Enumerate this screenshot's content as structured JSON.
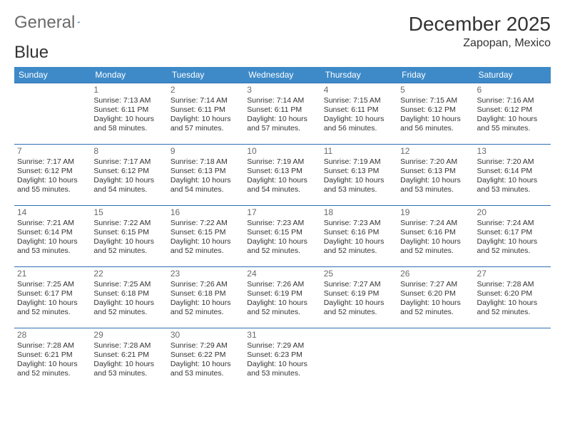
{
  "brand": {
    "part1": "General",
    "part2": "Blue"
  },
  "title": "December 2025",
  "location": "Zapopan, Mexico",
  "colors": {
    "header_bg": "#3e8ac8",
    "header_text": "#ffffff",
    "cell_border": "#2f6fb3",
    "daynum": "#6a6a6a",
    "text": "#333333",
    "logo_gray": "#6a6a6a",
    "logo_blue": "#2f6fb3"
  },
  "weekdays": [
    "Sunday",
    "Monday",
    "Tuesday",
    "Wednesday",
    "Thursday",
    "Friday",
    "Saturday"
  ],
  "first_day_index": 1,
  "days": [
    {
      "n": 1,
      "sr": "7:13 AM",
      "ss": "6:11 PM",
      "dl": "10 hours and 58 minutes."
    },
    {
      "n": 2,
      "sr": "7:14 AM",
      "ss": "6:11 PM",
      "dl": "10 hours and 57 minutes."
    },
    {
      "n": 3,
      "sr": "7:14 AM",
      "ss": "6:11 PM",
      "dl": "10 hours and 57 minutes."
    },
    {
      "n": 4,
      "sr": "7:15 AM",
      "ss": "6:11 PM",
      "dl": "10 hours and 56 minutes."
    },
    {
      "n": 5,
      "sr": "7:15 AM",
      "ss": "6:12 PM",
      "dl": "10 hours and 56 minutes."
    },
    {
      "n": 6,
      "sr": "7:16 AM",
      "ss": "6:12 PM",
      "dl": "10 hours and 55 minutes."
    },
    {
      "n": 7,
      "sr": "7:17 AM",
      "ss": "6:12 PM",
      "dl": "10 hours and 55 minutes."
    },
    {
      "n": 8,
      "sr": "7:17 AM",
      "ss": "6:12 PM",
      "dl": "10 hours and 54 minutes."
    },
    {
      "n": 9,
      "sr": "7:18 AM",
      "ss": "6:13 PM",
      "dl": "10 hours and 54 minutes."
    },
    {
      "n": 10,
      "sr": "7:19 AM",
      "ss": "6:13 PM",
      "dl": "10 hours and 54 minutes."
    },
    {
      "n": 11,
      "sr": "7:19 AM",
      "ss": "6:13 PM",
      "dl": "10 hours and 53 minutes."
    },
    {
      "n": 12,
      "sr": "7:20 AM",
      "ss": "6:13 PM",
      "dl": "10 hours and 53 minutes."
    },
    {
      "n": 13,
      "sr": "7:20 AM",
      "ss": "6:14 PM",
      "dl": "10 hours and 53 minutes."
    },
    {
      "n": 14,
      "sr": "7:21 AM",
      "ss": "6:14 PM",
      "dl": "10 hours and 53 minutes."
    },
    {
      "n": 15,
      "sr": "7:22 AM",
      "ss": "6:15 PM",
      "dl": "10 hours and 52 minutes."
    },
    {
      "n": 16,
      "sr": "7:22 AM",
      "ss": "6:15 PM",
      "dl": "10 hours and 52 minutes."
    },
    {
      "n": 17,
      "sr": "7:23 AM",
      "ss": "6:15 PM",
      "dl": "10 hours and 52 minutes."
    },
    {
      "n": 18,
      "sr": "7:23 AM",
      "ss": "6:16 PM",
      "dl": "10 hours and 52 minutes."
    },
    {
      "n": 19,
      "sr": "7:24 AM",
      "ss": "6:16 PM",
      "dl": "10 hours and 52 minutes."
    },
    {
      "n": 20,
      "sr": "7:24 AM",
      "ss": "6:17 PM",
      "dl": "10 hours and 52 minutes."
    },
    {
      "n": 21,
      "sr": "7:25 AM",
      "ss": "6:17 PM",
      "dl": "10 hours and 52 minutes."
    },
    {
      "n": 22,
      "sr": "7:25 AM",
      "ss": "6:18 PM",
      "dl": "10 hours and 52 minutes."
    },
    {
      "n": 23,
      "sr": "7:26 AM",
      "ss": "6:18 PM",
      "dl": "10 hours and 52 minutes."
    },
    {
      "n": 24,
      "sr": "7:26 AM",
      "ss": "6:19 PM",
      "dl": "10 hours and 52 minutes."
    },
    {
      "n": 25,
      "sr": "7:27 AM",
      "ss": "6:19 PM",
      "dl": "10 hours and 52 minutes."
    },
    {
      "n": 26,
      "sr": "7:27 AM",
      "ss": "6:20 PM",
      "dl": "10 hours and 52 minutes."
    },
    {
      "n": 27,
      "sr": "7:28 AM",
      "ss": "6:20 PM",
      "dl": "10 hours and 52 minutes."
    },
    {
      "n": 28,
      "sr": "7:28 AM",
      "ss": "6:21 PM",
      "dl": "10 hours and 52 minutes."
    },
    {
      "n": 29,
      "sr": "7:28 AM",
      "ss": "6:21 PM",
      "dl": "10 hours and 53 minutes."
    },
    {
      "n": 30,
      "sr": "7:29 AM",
      "ss": "6:22 PM",
      "dl": "10 hours and 53 minutes."
    },
    {
      "n": 31,
      "sr": "7:29 AM",
      "ss": "6:23 PM",
      "dl": "10 hours and 53 minutes."
    }
  ],
  "labels": {
    "sunrise": "Sunrise:",
    "sunset": "Sunset:",
    "daylight": "Daylight:"
  }
}
